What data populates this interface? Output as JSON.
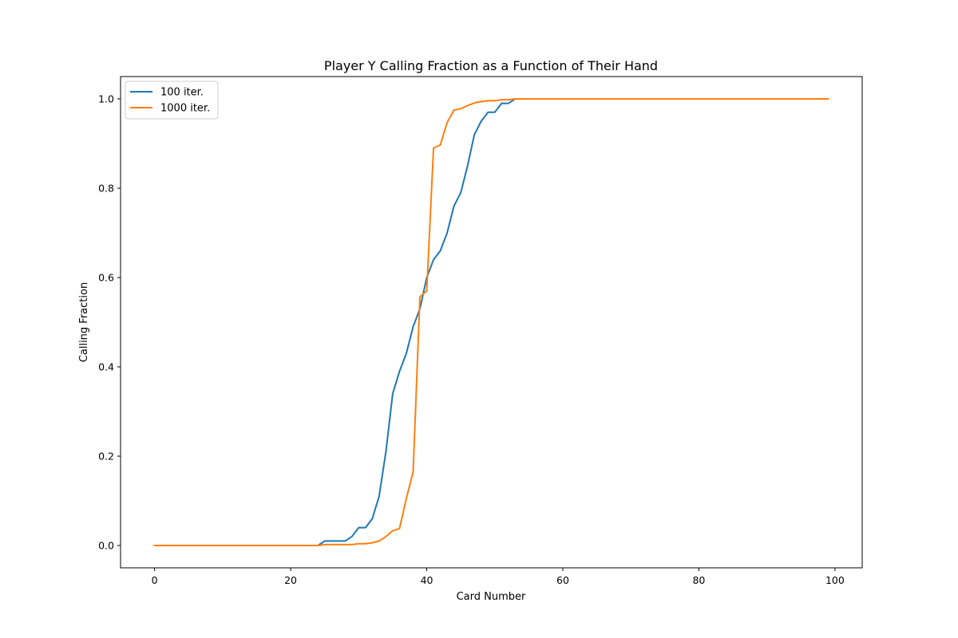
{
  "chart_data": {
    "type": "line",
    "title": "Player Y Calling Fraction as a Function of Their Hand",
    "xlabel": "Card Number",
    "ylabel": "Calling Fraction",
    "xlim": [
      -5,
      104
    ],
    "ylim": [
      -0.05,
      1.05
    ],
    "xticks": [
      0,
      20,
      40,
      60,
      80,
      100
    ],
    "yticks": [
      0.0,
      0.2,
      0.4,
      0.6,
      0.8,
      1.0
    ],
    "xtick_labels": [
      "0",
      "20",
      "40",
      "60",
      "80",
      "100"
    ],
    "ytick_labels": [
      "0.0",
      "0.2",
      "0.4",
      "0.6",
      "0.8",
      "1.0"
    ],
    "grid": false,
    "legend_position": "top-left",
    "series": [
      {
        "name": "100 iter.",
        "color": "#1f77b4",
        "points": [
          [
            0,
            0
          ],
          [
            24,
            0
          ],
          [
            25,
            0.01
          ],
          [
            26,
            0.01
          ],
          [
            27,
            0.01
          ],
          [
            28,
            0.01
          ],
          [
            29,
            0.02
          ],
          [
            30,
            0.04
          ],
          [
            31,
            0.04
          ],
          [
            32,
            0.06
          ],
          [
            33,
            0.11
          ],
          [
            34,
            0.21
          ],
          [
            35,
            0.34
          ],
          [
            36,
            0.39
          ],
          [
            37,
            0.43
          ],
          [
            38,
            0.49
          ],
          [
            39,
            0.53
          ],
          [
            40,
            0.6
          ],
          [
            41,
            0.64
          ],
          [
            42,
            0.66
          ],
          [
            43,
            0.7
          ],
          [
            44,
            0.76
          ],
          [
            45,
            0.79
          ],
          [
            46,
            0.85
          ],
          [
            47,
            0.92
          ],
          [
            48,
            0.95
          ],
          [
            49,
            0.97
          ],
          [
            50,
            0.97
          ],
          [
            51,
            0.99
          ],
          [
            52,
            0.99
          ],
          [
            53,
            1.0
          ],
          [
            99,
            1.0
          ]
        ]
      },
      {
        "name": "1000 iter.",
        "color": "#ff7f0e",
        "points": [
          [
            0,
            0
          ],
          [
            24,
            0
          ],
          [
            25,
            0.002
          ],
          [
            26,
            0.002
          ],
          [
            27,
            0.002
          ],
          [
            28,
            0.002
          ],
          [
            29,
            0.002
          ],
          [
            30,
            0.004
          ],
          [
            31,
            0.004
          ],
          [
            32,
            0.006
          ],
          [
            33,
            0.01
          ],
          [
            34,
            0.02
          ],
          [
            35,
            0.033
          ],
          [
            36,
            0.038
          ],
          [
            37,
            0.105
          ],
          [
            38,
            0.165
          ],
          [
            39,
            0.557
          ],
          [
            40,
            0.57
          ],
          [
            41,
            0.89
          ],
          [
            42,
            0.897
          ],
          [
            43,
            0.947
          ],
          [
            44,
            0.975
          ],
          [
            45,
            0.978
          ],
          [
            46,
            0.985
          ],
          [
            47,
            0.991
          ],
          [
            48,
            0.994
          ],
          [
            49,
            0.996
          ],
          [
            50,
            0.996
          ],
          [
            51,
            0.998
          ],
          [
            52,
            0.998
          ],
          [
            53,
            1.0
          ],
          [
            99,
            1.0
          ]
        ]
      }
    ]
  }
}
